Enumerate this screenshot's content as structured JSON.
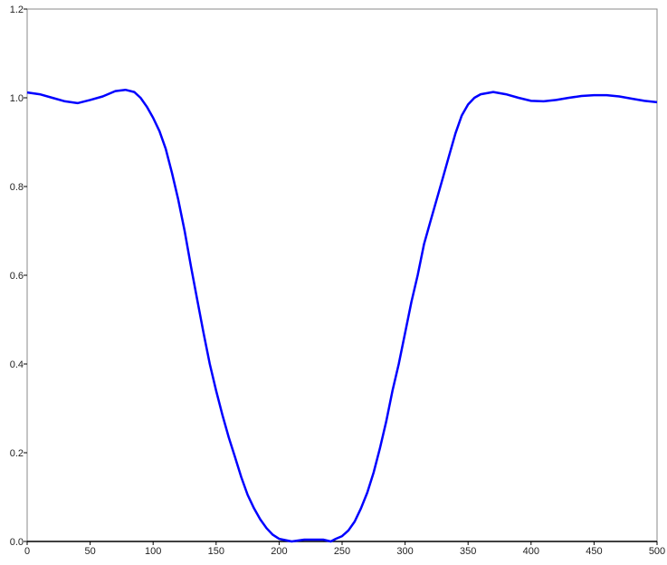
{
  "chart_data": {
    "type": "line",
    "title": "",
    "xlabel": "",
    "ylabel": "",
    "xlim": [
      0,
      500
    ],
    "ylim": [
      0,
      1.2
    ],
    "x_ticks": [
      "0",
      "50",
      "100",
      "150",
      "200",
      "250",
      "300",
      "350",
      "400",
      "450",
      "500"
    ],
    "y_ticks": [
      "0.0",
      "0.2",
      "0.4",
      "0.6",
      "0.8",
      "1.0",
      "1.2"
    ],
    "grid": false,
    "legend": "none",
    "line_color": "#0000ff",
    "series": [
      {
        "x": [
          0,
          10,
          20,
          30,
          40,
          50,
          60,
          70,
          78,
          85,
          90,
          95,
          100,
          105,
          110,
          115,
          120,
          125,
          130,
          135,
          140,
          145,
          150,
          155,
          160,
          165,
          170,
          175,
          180,
          185,
          190,
          195,
          200,
          210,
          220,
          230,
          235,
          241,
          245,
          250,
          255,
          260,
          265,
          270,
          275,
          280,
          285,
          290,
          295,
          300,
          305,
          310,
          315,
          320,
          325,
          330,
          335,
          340,
          345,
          350,
          355,
          360,
          370,
          380,
          390,
          400,
          410,
          420,
          430,
          440,
          450,
          460,
          470,
          480,
          490,
          500
        ],
        "y": [
          1.012,
          1.008,
          1.0,
          0.992,
          0.988,
          0.995,
          1.003,
          1.015,
          1.018,
          1.013,
          1.0,
          0.98,
          0.955,
          0.925,
          0.885,
          0.83,
          0.77,
          0.7,
          0.62,
          0.545,
          0.47,
          0.4,
          0.34,
          0.285,
          0.235,
          0.19,
          0.145,
          0.105,
          0.075,
          0.05,
          0.03,
          0.015,
          0.006,
          0.0,
          0.004,
          0.004,
          0.004,
          0.0,
          0.006,
          0.012,
          0.025,
          0.045,
          0.075,
          0.11,
          0.155,
          0.21,
          0.27,
          0.34,
          0.4,
          0.47,
          0.54,
          0.6,
          0.67,
          0.72,
          0.77,
          0.82,
          0.87,
          0.92,
          0.96,
          0.985,
          1.0,
          1.008,
          1.013,
          1.008,
          1.0,
          0.993,
          0.992,
          0.995,
          1.0,
          1.004,
          1.006,
          1.006,
          1.003,
          0.998,
          0.993,
          0.99
        ]
      }
    ]
  }
}
